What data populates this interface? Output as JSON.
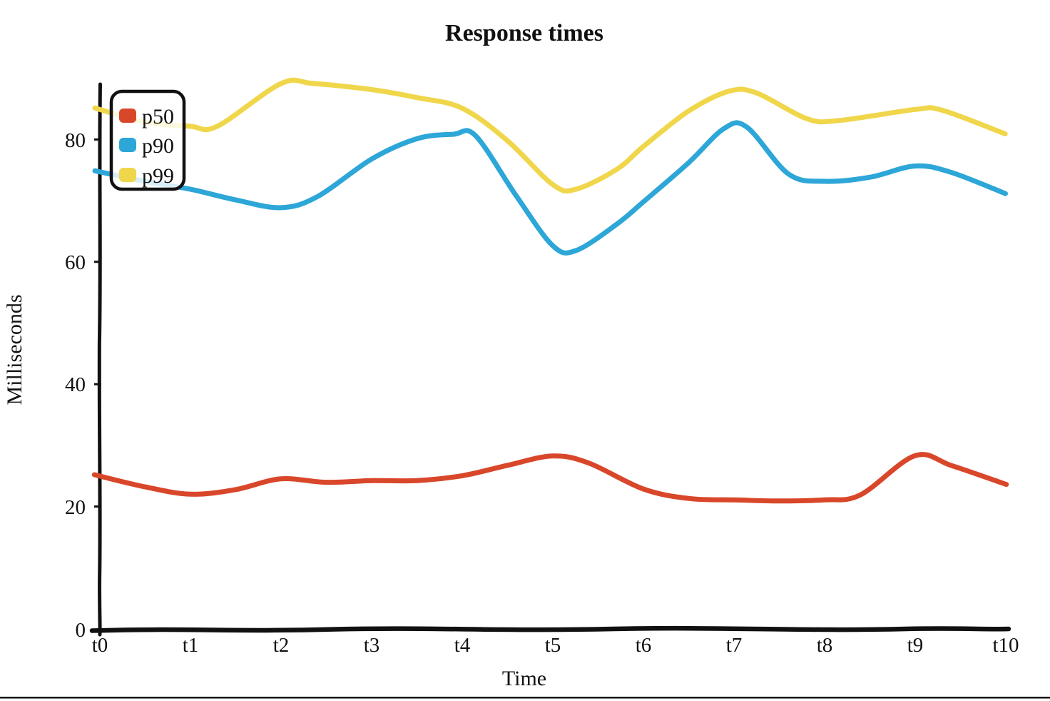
{
  "chart_data": {
    "type": "line",
    "title": "Response times",
    "xlabel": "Time",
    "ylabel": "Milliseconds",
    "categories": [
      "t0",
      "t1",
      "t2",
      "t3",
      "t4",
      "t5",
      "t6",
      "t7",
      "t8",
      "t9",
      "t10"
    ],
    "xtick_labels": [
      "t0",
      "t1",
      "t2",
      "t3",
      "t4",
      "t5",
      "t6",
      "t7",
      "t8",
      "t9",
      "t10"
    ],
    "ytick_labels": [
      "0",
      "20",
      "40",
      "60",
      "80"
    ],
    "yticks": [
      0,
      20,
      40,
      60,
      80
    ],
    "ylim": [
      0,
      90
    ],
    "grid": false,
    "legend_position": "upper-left",
    "style": "hand-drawn-xkcd",
    "axis_color": "#111111",
    "series": [
      {
        "name": "p50",
        "color": "#d9472b",
        "values": [
          25,
          22,
          24.5,
          24,
          25,
          28,
          22.5,
          21,
          21,
          28,
          23.5
        ],
        "points": [
          [
            -0.06,
            25.2
          ],
          [
            0.5,
            23.2
          ],
          [
            1,
            22
          ],
          [
            1.5,
            22.8
          ],
          [
            2,
            24.5
          ],
          [
            2.5,
            24
          ],
          [
            3,
            24.2
          ],
          [
            3.5,
            24.3
          ],
          [
            4,
            25
          ],
          [
            4.5,
            26.8
          ],
          [
            5,
            28.2
          ],
          [
            5.4,
            27.2
          ],
          [
            6,
            22.8
          ],
          [
            6.5,
            21.4
          ],
          [
            7,
            21
          ],
          [
            7.5,
            21
          ],
          [
            8,
            21
          ],
          [
            8.4,
            22
          ],
          [
            9,
            28.2
          ],
          [
            9.4,
            26.8
          ],
          [
            10,
            23.5
          ]
        ]
      },
      {
        "name": "p90",
        "color": "#2da6d8",
        "values": [
          75,
          72,
          69,
          77,
          81,
          62,
          70,
          82,
          73,
          75,
          71
        ],
        "points": [
          [
            -0.06,
            75
          ],
          [
            0.5,
            73
          ],
          [
            1,
            72
          ],
          [
            1.5,
            70
          ],
          [
            2,
            69
          ],
          [
            2.4,
            70.5
          ],
          [
            3,
            77
          ],
          [
            3.5,
            80
          ],
          [
            3.9,
            81
          ],
          [
            4.15,
            80.5
          ],
          [
            4.6,
            71
          ],
          [
            5,
            62.5
          ],
          [
            5.25,
            62
          ],
          [
            5.7,
            66
          ],
          [
            6,
            70
          ],
          [
            6.5,
            76
          ],
          [
            6.9,
            82
          ],
          [
            7.15,
            81.8
          ],
          [
            7.6,
            74.5
          ],
          [
            8,
            73
          ],
          [
            8.5,
            74
          ],
          [
            9,
            75.5
          ],
          [
            9.4,
            74.8
          ],
          [
            10,
            71
          ]
        ]
      },
      {
        "name": "p99",
        "color": "#f0d64a",
        "values": [
          85,
          82,
          89,
          88,
          85,
          72,
          79,
          88,
          83,
          85,
          81
        ],
        "points": [
          [
            -0.06,
            85
          ],
          [
            0.5,
            83
          ],
          [
            1,
            82
          ],
          [
            1.3,
            82.3
          ],
          [
            2,
            89
          ],
          [
            2.35,
            89.3
          ],
          [
            3,
            88
          ],
          [
            3.5,
            87
          ],
          [
            4,
            85
          ],
          [
            4.5,
            80
          ],
          [
            5,
            72.5
          ],
          [
            5.25,
            72
          ],
          [
            5.7,
            75
          ],
          [
            6,
            79
          ],
          [
            6.5,
            84.5
          ],
          [
            6.95,
            88
          ],
          [
            7.25,
            87.5
          ],
          [
            7.8,
            83.5
          ],
          [
            8.15,
            83
          ],
          [
            9,
            85
          ],
          [
            9.3,
            84.7
          ],
          [
            10,
            81
          ]
        ]
      }
    ]
  }
}
